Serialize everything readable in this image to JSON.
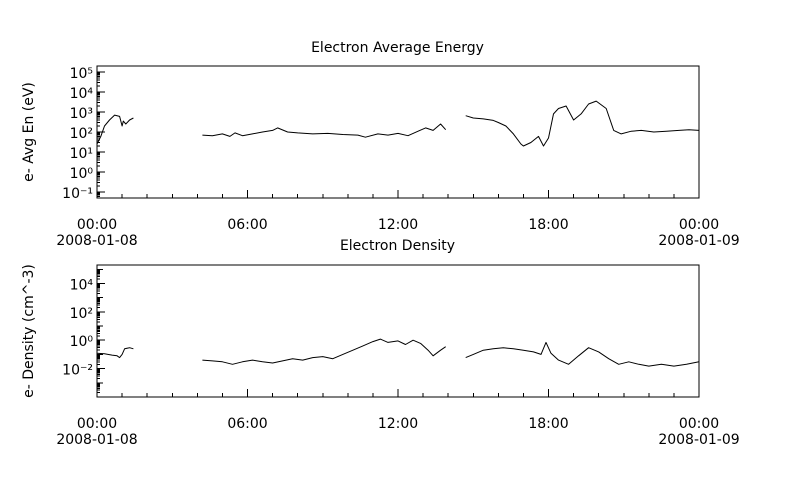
{
  "chart_data": [
    {
      "type": "line",
      "title": "Electron Average Energy",
      "ylabel": "e- Avg En (eV)",
      "yscale": "log",
      "ylim": [
        0.05,
        200000
      ],
      "xlim": [
        0,
        24
      ],
      "x_unit": "hours since 2008-01-08 00:00",
      "x_ticks": [
        {
          "label": "00:00",
          "sublabel": "2008-01-08"
        },
        {
          "label": "06:00",
          "sublabel": ""
        },
        {
          "label": "12:00",
          "sublabel": ""
        },
        {
          "label": "18:00",
          "sublabel": ""
        },
        {
          "label": "00:00",
          "sublabel": "2008-01-09"
        }
      ],
      "y_ticks": [
        {
          "value": 0.1,
          "label": "10⁻¹"
        },
        {
          "value": 1,
          "label": "10⁰"
        },
        {
          "value": 10,
          "label": "10¹"
        },
        {
          "value": 100,
          "label": "10²"
        },
        {
          "value": 1000,
          "label": "10³"
        },
        {
          "value": 10000,
          "label": "10⁴"
        },
        {
          "value": 100000,
          "label": "10⁵"
        }
      ],
      "grid": false,
      "series": [
        {
          "x": [
            0.0,
            0.15,
            0.3,
            0.5,
            0.7,
            0.9,
            1.0,
            1.05,
            1.15,
            1.3,
            1.45
          ],
          "y": [
            25,
            60,
            200,
            400,
            700,
            600,
            200,
            350,
            250,
            400,
            500
          ]
        },
        {
          "x": [
            4.2,
            4.6,
            5.0,
            5.3,
            5.5,
            5.8,
            6.2,
            6.6,
            7.0,
            7.2,
            7.6,
            8.0,
            8.6,
            9.2,
            9.8,
            10.4,
            10.7,
            11.2,
            11.6,
            12.0,
            12.4,
            12.8,
            13.1,
            13.4,
            13.7,
            13.9
          ],
          "y": [
            70,
            65,
            80,
            60,
            90,
            65,
            80,
            100,
            120,
            160,
            100,
            90,
            80,
            85,
            75,
            70,
            55,
            80,
            70,
            85,
            65,
            110,
            160,
            120,
            250,
            130
          ]
        },
        {
          "x": [
            14.7,
            15.0,
            15.4,
            15.8,
            16.0,
            16.3,
            16.6,
            16.9,
            17.0,
            17.3,
            17.6,
            17.8,
            18.0,
            18.2,
            18.4,
            18.7,
            19.0,
            19.3,
            19.6,
            19.9,
            20.3,
            20.6,
            20.9,
            21.3,
            21.7,
            22.2,
            22.7,
            23.2,
            23.6,
            24.0
          ],
          "y": [
            650,
            500,
            450,
            380,
            300,
            200,
            80,
            25,
            20,
            30,
            60,
            20,
            50,
            800,
            1500,
            2000,
            400,
            800,
            2500,
            3500,
            1500,
            120,
            80,
            110,
            120,
            100,
            110,
            120,
            130,
            120
          ]
        }
      ]
    },
    {
      "type": "line",
      "title": "Electron Density",
      "ylabel": "e- Density (cm^-3)",
      "yscale": "log",
      "ylim": [
        0.0001,
        200000
      ],
      "xlim": [
        0,
        24
      ],
      "x_unit": "hours since 2008-01-08 00:00",
      "x_ticks": [
        {
          "label": "00:00",
          "sublabel": "2008-01-08"
        },
        {
          "label": "06:00",
          "sublabel": ""
        },
        {
          "label": "12:00",
          "sublabel": ""
        },
        {
          "label": "18:00",
          "sublabel": ""
        },
        {
          "label": "00:00",
          "sublabel": "2008-01-09"
        }
      ],
      "y_ticks": [
        {
          "value": 0.01,
          "label": "10⁻²"
        },
        {
          "value": 1,
          "label": "10⁰"
        },
        {
          "value": 100,
          "label": "10²"
        },
        {
          "value": 10000,
          "label": "10⁴"
        }
      ],
      "grid": false,
      "series": [
        {
          "x": [
            0.0,
            0.3,
            0.6,
            0.8,
            0.9,
            1.0,
            1.1,
            1.3,
            1.45
          ],
          "y": [
            0.12,
            0.11,
            0.09,
            0.08,
            0.06,
            0.1,
            0.25,
            0.3,
            0.25
          ]
        },
        {
          "x": [
            4.2,
            4.6,
            5.0,
            5.4,
            5.8,
            6.2,
            6.6,
            7.0,
            7.4,
            7.8,
            8.2,
            8.6,
            9.0,
            9.4,
            9.8,
            10.2,
            10.6,
            11.0,
            11.3,
            11.6,
            12.0,
            12.3,
            12.6,
            12.9,
            13.2,
            13.4,
            13.7,
            13.9
          ],
          "y": [
            0.04,
            0.035,
            0.03,
            0.02,
            0.03,
            0.04,
            0.03,
            0.025,
            0.035,
            0.05,
            0.04,
            0.06,
            0.07,
            0.05,
            0.1,
            0.2,
            0.4,
            0.8,
            1.2,
            0.7,
            0.9,
            0.5,
            1.0,
            0.6,
            0.2,
            0.08,
            0.2,
            0.35
          ]
        },
        {
          "x": [
            14.7,
            15.0,
            15.4,
            15.8,
            16.2,
            16.6,
            17.0,
            17.4,
            17.7,
            17.9,
            18.1,
            18.4,
            18.8,
            19.2,
            19.6,
            20.0,
            20.4,
            20.8,
            21.2,
            21.6,
            22.0,
            22.5,
            23.0,
            23.5,
            24.0
          ],
          "y": [
            0.06,
            0.1,
            0.2,
            0.25,
            0.3,
            0.25,
            0.2,
            0.15,
            0.1,
            0.7,
            0.12,
            0.04,
            0.02,
            0.08,
            0.3,
            0.15,
            0.05,
            0.02,
            0.03,
            0.02,
            0.015,
            0.02,
            0.015,
            0.02,
            0.03
          ]
        }
      ]
    }
  ]
}
